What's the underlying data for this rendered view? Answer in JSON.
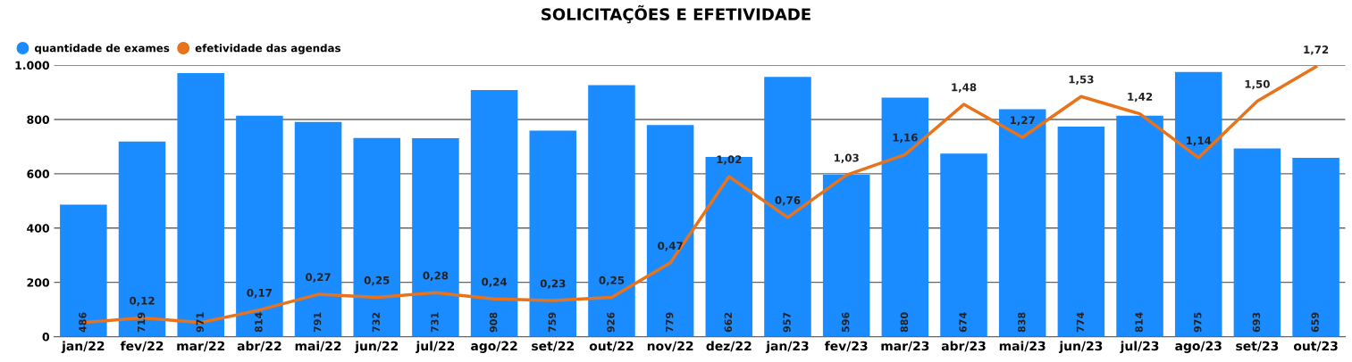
{
  "chart_data": {
    "type": "bar",
    "title": "SOLICITAÇÕES E EFETIVIDADE",
    "categories": [
      "jan/22",
      "fev/22",
      "mar/22",
      "abr/22",
      "mai/22",
      "jun/22",
      "jul/22",
      "ago/22",
      "set/22",
      "out/22",
      "nov/22",
      "dez/22",
      "jan/23",
      "fev/23",
      "mar/23",
      "abr/23",
      "mai/23",
      "jun/23",
      "jul/23",
      "ago/23",
      "set/23",
      "out/23"
    ],
    "series": [
      {
        "name": "quantidade de exames",
        "color": "#1a8cff",
        "values": [
          486,
          719,
          971,
          814,
          791,
          732,
          731,
          908,
          759,
          926,
          779,
          662,
          957,
          596,
          880,
          674,
          838,
          774,
          814,
          975,
          693,
          659
        ],
        "value_labels": [
          "486",
          "719",
          "971",
          "814",
          "791",
          "732",
          "731",
          "908",
          "759",
          "926",
          "779",
          "662",
          "957",
          "596",
          "880",
          "674",
          "838",
          "774",
          "814",
          "975",
          "693",
          "659"
        ]
      },
      {
        "name": "efetividade das agendas",
        "type": "line",
        "axis": "y2",
        "color": "#e8731a",
        "values": [
          0.09,
          0.12,
          0.09,
          0.17,
          0.27,
          0.25,
          0.28,
          0.24,
          0.23,
          0.25,
          0.47,
          1.02,
          0.76,
          1.03,
          1.16,
          1.48,
          1.27,
          1.53,
          1.42,
          1.14,
          1.5,
          1.72
        ],
        "value_labels": [
          null,
          "0,12",
          null,
          "0,17",
          "0,27",
          "0,25",
          "0,28",
          "0,24",
          "0,23",
          "0,25",
          "0,47",
          "1,02",
          "0,76",
          "1,03",
          "1,16",
          "1,48",
          "1,27",
          "1,53",
          "1,42",
          "1,14",
          "1,50",
          "1,72"
        ]
      }
    ],
    "ylim": [
      0,
      1000
    ],
    "yticks": [
      0,
      200,
      400,
      600,
      800,
      {
        "value": 1000,
        "label": "1.000"
      }
    ],
    "y2lim": [
      0,
      1.73
    ],
    "grid": "y",
    "legend": "top left",
    "marker": "none",
    "line_style": "solid"
  }
}
